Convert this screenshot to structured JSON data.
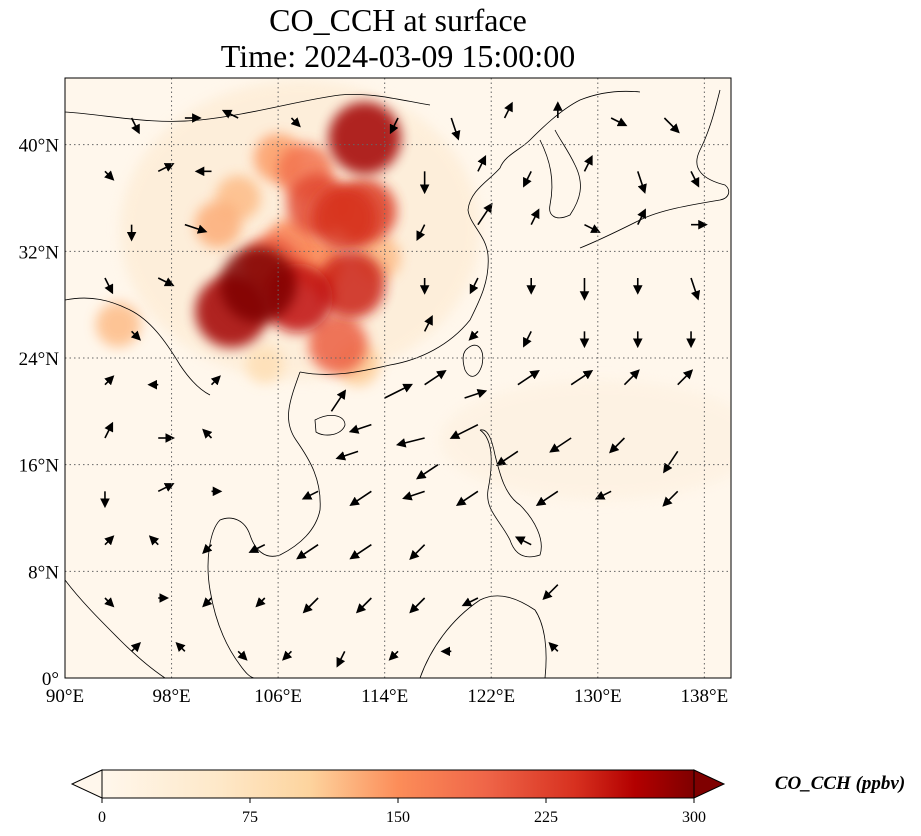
{
  "chart_data": {
    "type": "heatmap",
    "title": "CO_CCH at surface",
    "subtitle": "Time: 2024-03-09 15:00:00",
    "map": {
      "lon_range": [
        90,
        140
      ],
      "lat_range": [
        0,
        45
      ],
      "xticks": [
        90,
        98,
        106,
        114,
        122,
        130,
        138
      ],
      "yticks": [
        0,
        8,
        16,
        24,
        32,
        40
      ],
      "xtick_labels": [
        "90°E",
        "98°E",
        "106°E",
        "114°E",
        "122°E",
        "130°E",
        "138°E"
      ],
      "ytick_labels": [
        "0°",
        "8°N",
        "16°N",
        "24°N",
        "32°N",
        "40°N"
      ],
      "grid": true,
      "grid_style": "dotted"
    },
    "colorbar": {
      "label": "CO_CCH (ppbv)",
      "range": [
        0,
        300
      ],
      "ticks": [
        0,
        75,
        150,
        225,
        300
      ],
      "tick_labels": [
        "0",
        "75",
        "150",
        "225",
        "300"
      ],
      "colormap": "OrRd",
      "extend": "both",
      "orientation": "horizontal"
    },
    "plumes": [
      {
        "lon": 104.5,
        "lat": 29.5,
        "value": 300
      },
      {
        "lon": 102.5,
        "lat": 27.5,
        "value": 280
      },
      {
        "lon": 107.5,
        "lat": 28.5,
        "value": 260
      },
      {
        "lon": 111.5,
        "lat": 29.5,
        "value": 250
      },
      {
        "lon": 110.5,
        "lat": 25.0,
        "value": 200
      },
      {
        "lon": 111.0,
        "lat": 34.5,
        "value": 240
      },
      {
        "lon": 109.0,
        "lat": 35.5,
        "value": 220
      },
      {
        "lon": 112.5,
        "lat": 35.0,
        "value": 230
      },
      {
        "lon": 112.5,
        "lat": 40.5,
        "value": 280
      },
      {
        "lon": 108.0,
        "lat": 38.0,
        "value": 180
      },
      {
        "lon": 106.0,
        "lat": 39.0,
        "value": 140
      },
      {
        "lon": 105.5,
        "lat": 31.0,
        "value": 200
      },
      {
        "lon": 101.5,
        "lat": 34.0,
        "value": 130
      },
      {
        "lon": 103.0,
        "lat": 36.0,
        "value": 120
      },
      {
        "lon": 107.0,
        "lat": 32.5,
        "value": 160
      },
      {
        "lon": 109.0,
        "lat": 31.0,
        "value": 150
      },
      {
        "lon": 94.0,
        "lat": 26.5,
        "value": 120
      },
      {
        "lon": 113.5,
        "lat": 31.5,
        "value": 120
      },
      {
        "lon": 105.0,
        "lat": 23.5,
        "value": 80
      },
      {
        "lon": 112.0,
        "lat": 23.5,
        "value": 110
      }
    ],
    "wind_vectors": [
      {
        "lon": 95,
        "lat": 42,
        "u": 1,
        "v": -2
      },
      {
        "lon": 99,
        "lat": 42,
        "u": 2,
        "v": 0
      },
      {
        "lon": 103,
        "lat": 42,
        "u": -2,
        "v": 1
      },
      {
        "lon": 107,
        "lat": 42,
        "u": 1,
        "v": -1
      },
      {
        "lon": 115,
        "lat": 42,
        "u": -1,
        "v": -2
      },
      {
        "lon": 119,
        "lat": 42,
        "u": 1,
        "v": -3
      },
      {
        "lon": 123,
        "lat": 42,
        "u": 1,
        "v": 2
      },
      {
        "lon": 127,
        "lat": 42,
        "u": 0,
        "v": 2
      },
      {
        "lon": 131,
        "lat": 42,
        "u": 2,
        "v": -1
      },
      {
        "lon": 135,
        "lat": 42,
        "u": 2,
        "v": -2
      },
      {
        "lon": 93,
        "lat": 38,
        "u": 1,
        "v": -1
      },
      {
        "lon": 97,
        "lat": 38,
        "u": 2,
        "v": 1
      },
      {
        "lon": 101,
        "lat": 38,
        "u": -2,
        "v": 0
      },
      {
        "lon": 117,
        "lat": 38,
        "u": 0,
        "v": -3
      },
      {
        "lon": 121,
        "lat": 38,
        "u": 1,
        "v": 2
      },
      {
        "lon": 125,
        "lat": 38,
        "u": -1,
        "v": -2
      },
      {
        "lon": 129,
        "lat": 38,
        "u": 1,
        "v": 2
      },
      {
        "lon": 133,
        "lat": 38,
        "u": 1,
        "v": -3
      },
      {
        "lon": 137,
        "lat": 38,
        "u": 1,
        "v": -2
      },
      {
        "lon": 95,
        "lat": 34,
        "u": 0,
        "v": -2
      },
      {
        "lon": 99,
        "lat": 34,
        "u": 3,
        "v": -1
      },
      {
        "lon": 117,
        "lat": 34,
        "u": -1,
        "v": -2
      },
      {
        "lon": 121,
        "lat": 34,
        "u": 2,
        "v": 3
      },
      {
        "lon": 125,
        "lat": 34,
        "u": 1,
        "v": 2
      },
      {
        "lon": 129,
        "lat": 34,
        "u": 2,
        "v": -1
      },
      {
        "lon": 133,
        "lat": 34,
        "u": 1,
        "v": 2
      },
      {
        "lon": 137,
        "lat": 34,
        "u": 2,
        "v": 0
      },
      {
        "lon": 93,
        "lat": 30,
        "u": 1,
        "v": -2
      },
      {
        "lon": 97,
        "lat": 30,
        "u": 2,
        "v": -1
      },
      {
        "lon": 117,
        "lat": 30,
        "u": 0,
        "v": -2
      },
      {
        "lon": 121,
        "lat": 30,
        "u": -1,
        "v": -2
      },
      {
        "lon": 125,
        "lat": 30,
        "u": 0,
        "v": -2
      },
      {
        "lon": 129,
        "lat": 30,
        "u": 0,
        "v": -3
      },
      {
        "lon": 133,
        "lat": 30,
        "u": 0,
        "v": -2
      },
      {
        "lon": 137,
        "lat": 30,
        "u": 1,
        "v": -3
      },
      {
        "lon": 95,
        "lat": 26,
        "u": 1,
        "v": -1
      },
      {
        "lon": 117,
        "lat": 26,
        "u": 1,
        "v": 2
      },
      {
        "lon": 121,
        "lat": 26,
        "u": -1,
        "v": -1
      },
      {
        "lon": 125,
        "lat": 26,
        "u": -1,
        "v": -2
      },
      {
        "lon": 129,
        "lat": 26,
        "u": 0,
        "v": -2
      },
      {
        "lon": 133,
        "lat": 26,
        "u": 0,
        "v": -2
      },
      {
        "lon": 137,
        "lat": 26,
        "u": 0,
        "v": -2
      },
      {
        "lon": 93,
        "lat": 22,
        "u": 1,
        "v": 1
      },
      {
        "lon": 97,
        "lat": 22,
        "u": -1,
        "v": 0
      },
      {
        "lon": 101,
        "lat": 22,
        "u": 1,
        "v": 1
      },
      {
        "lon": 110,
        "lat": 20,
        "u": 2,
        "v": 3
      },
      {
        "lon": 114,
        "lat": 21,
        "u": 4,
        "v": 2
      },
      {
        "lon": 117,
        "lat": 22,
        "u": 3,
        "v": 2
      },
      {
        "lon": 120,
        "lat": 21,
        "u": 3,
        "v": 1
      },
      {
        "lon": 124,
        "lat": 22,
        "u": 3,
        "v": 2
      },
      {
        "lon": 128,
        "lat": 22,
        "u": 3,
        "v": 2
      },
      {
        "lon": 132,
        "lat": 22,
        "u": 2,
        "v": 2
      },
      {
        "lon": 136,
        "lat": 22,
        "u": 2,
        "v": 2
      },
      {
        "lon": 113,
        "lat": 19,
        "u": -3,
        "v": -1
      },
      {
        "lon": 117,
        "lat": 18,
        "u": -4,
        "v": -1
      },
      {
        "lon": 121,
        "lat": 19,
        "u": -4,
        "v": -2
      },
      {
        "lon": 93,
        "lat": 18,
        "u": 1,
        "v": 2
      },
      {
        "lon": 97,
        "lat": 18,
        "u": 2,
        "v": 0
      },
      {
        "lon": 101,
        "lat": 18,
        "u": -1,
        "v": 1
      },
      {
        "lon": 112,
        "lat": 17,
        "u": -3,
        "v": -1
      },
      {
        "lon": 118,
        "lat": 16,
        "u": -3,
        "v": -2
      },
      {
        "lon": 124,
        "lat": 17,
        "u": -3,
        "v": -2
      },
      {
        "lon": 128,
        "lat": 18,
        "u": -3,
        "v": -2
      },
      {
        "lon": 132,
        "lat": 18,
        "u": -2,
        "v": -2
      },
      {
        "lon": 136,
        "lat": 17,
        "u": -2,
        "v": -3
      },
      {
        "lon": 93,
        "lat": 14,
        "u": 0,
        "v": -2
      },
      {
        "lon": 97,
        "lat": 14,
        "u": 2,
        "v": 1
      },
      {
        "lon": 101,
        "lat": 14,
        "u": 1,
        "v": 0
      },
      {
        "lon": 109,
        "lat": 14,
        "u": -2,
        "v": -1
      },
      {
        "lon": 113,
        "lat": 14,
        "u": -3,
        "v": -2
      },
      {
        "lon": 117,
        "lat": 14,
        "u": -3,
        "v": -1
      },
      {
        "lon": 121,
        "lat": 14,
        "u": -3,
        "v": -2
      },
      {
        "lon": 127,
        "lat": 14,
        "u": -3,
        "v": -2
      },
      {
        "lon": 131,
        "lat": 14,
        "u": -2,
        "v": -1
      },
      {
        "lon": 136,
        "lat": 14,
        "u": -2,
        "v": -2
      },
      {
        "lon": 93,
        "lat": 10,
        "u": 1,
        "v": 1
      },
      {
        "lon": 97,
        "lat": 10,
        "u": -1,
        "v": 1
      },
      {
        "lon": 101,
        "lat": 10,
        "u": -1,
        "v": -1
      },
      {
        "lon": 105,
        "lat": 10,
        "u": -2,
        "v": -1
      },
      {
        "lon": 109,
        "lat": 10,
        "u": -3,
        "v": -2
      },
      {
        "lon": 113,
        "lat": 10,
        "u": -3,
        "v": -2
      },
      {
        "lon": 117,
        "lat": 10,
        "u": -2,
        "v": -2
      },
      {
        "lon": 125,
        "lat": 10,
        "u": -2,
        "v": 1
      },
      {
        "lon": 93,
        "lat": 6,
        "u": 1,
        "v": -1
      },
      {
        "lon": 97,
        "lat": 6,
        "u": 1,
        "v": 0
      },
      {
        "lon": 101,
        "lat": 6,
        "u": -1,
        "v": -1
      },
      {
        "lon": 105,
        "lat": 6,
        "u": -1,
        "v": -1
      },
      {
        "lon": 109,
        "lat": 6,
        "u": -2,
        "v": -2
      },
      {
        "lon": 113,
        "lat": 6,
        "u": -2,
        "v": -2
      },
      {
        "lon": 117,
        "lat": 6,
        "u": -2,
        "v": -2
      },
      {
        "lon": 121,
        "lat": 6,
        "u": -2,
        "v": -1
      },
      {
        "lon": 127,
        "lat": 7,
        "u": -2,
        "v": -2
      },
      {
        "lon": 95,
        "lat": 2,
        "u": 1,
        "v": 1
      },
      {
        "lon": 99,
        "lat": 2,
        "u": -1,
        "v": 1
      },
      {
        "lon": 103,
        "lat": 2,
        "u": 1,
        "v": -1
      },
      {
        "lon": 107,
        "lat": 2,
        "u": -1,
        "v": -1
      },
      {
        "lon": 111,
        "lat": 2,
        "u": -1,
        "v": -2
      },
      {
        "lon": 115,
        "lat": 2,
        "u": -1,
        "v": -1
      },
      {
        "lon": 119,
        "lat": 2,
        "u": -1,
        "v": 0
      },
      {
        "lon": 127,
        "lat": 2,
        "u": -1,
        "v": 1
      }
    ]
  }
}
